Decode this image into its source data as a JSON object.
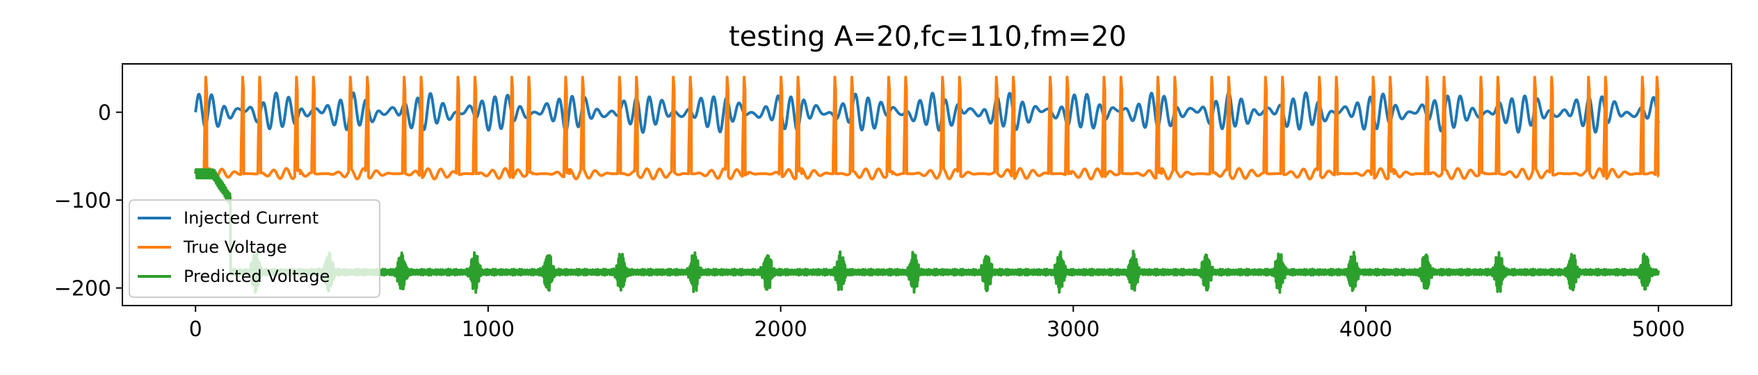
{
  "chart_data": {
    "type": "line",
    "title": "testing A=20,fc=110,fm=20",
    "xlabel": "",
    "ylabel": "",
    "xlim": [
      -250,
      5250
    ],
    "ylim": [
      -220,
      55
    ],
    "xticks": [
      0,
      1000,
      2000,
      3000,
      4000,
      5000
    ],
    "xtick_labels": [
      "0",
      "1000",
      "2000",
      "3000",
      "4000",
      "5000"
    ],
    "yticks": [
      0,
      -100,
      -200
    ],
    "ytick_labels": [
      "0",
      "−100",
      "−200"
    ],
    "grid": false,
    "legend_position": "lower-left",
    "x_range": [
      0,
      5000
    ],
    "series": [
      {
        "name": "Injected Current",
        "color": "#1f77b4",
        "description_values": {
          "amplitude_max": 20,
          "amplitude_min": -20,
          "baseline": 0
        }
      },
      {
        "name": "True Voltage",
        "color": "#ff7f0e",
        "description_values": {
          "rest_level": -68,
          "spike_peak": 42,
          "trough_min": -82,
          "spike_count_approx": 54
        }
      },
      {
        "name": "Predicted Voltage",
        "color": "#2ca02c",
        "description_values": {
          "initial_level": -70,
          "baseline": -182,
          "burst_max": -160,
          "burst_min": -205
        }
      }
    ]
  }
}
